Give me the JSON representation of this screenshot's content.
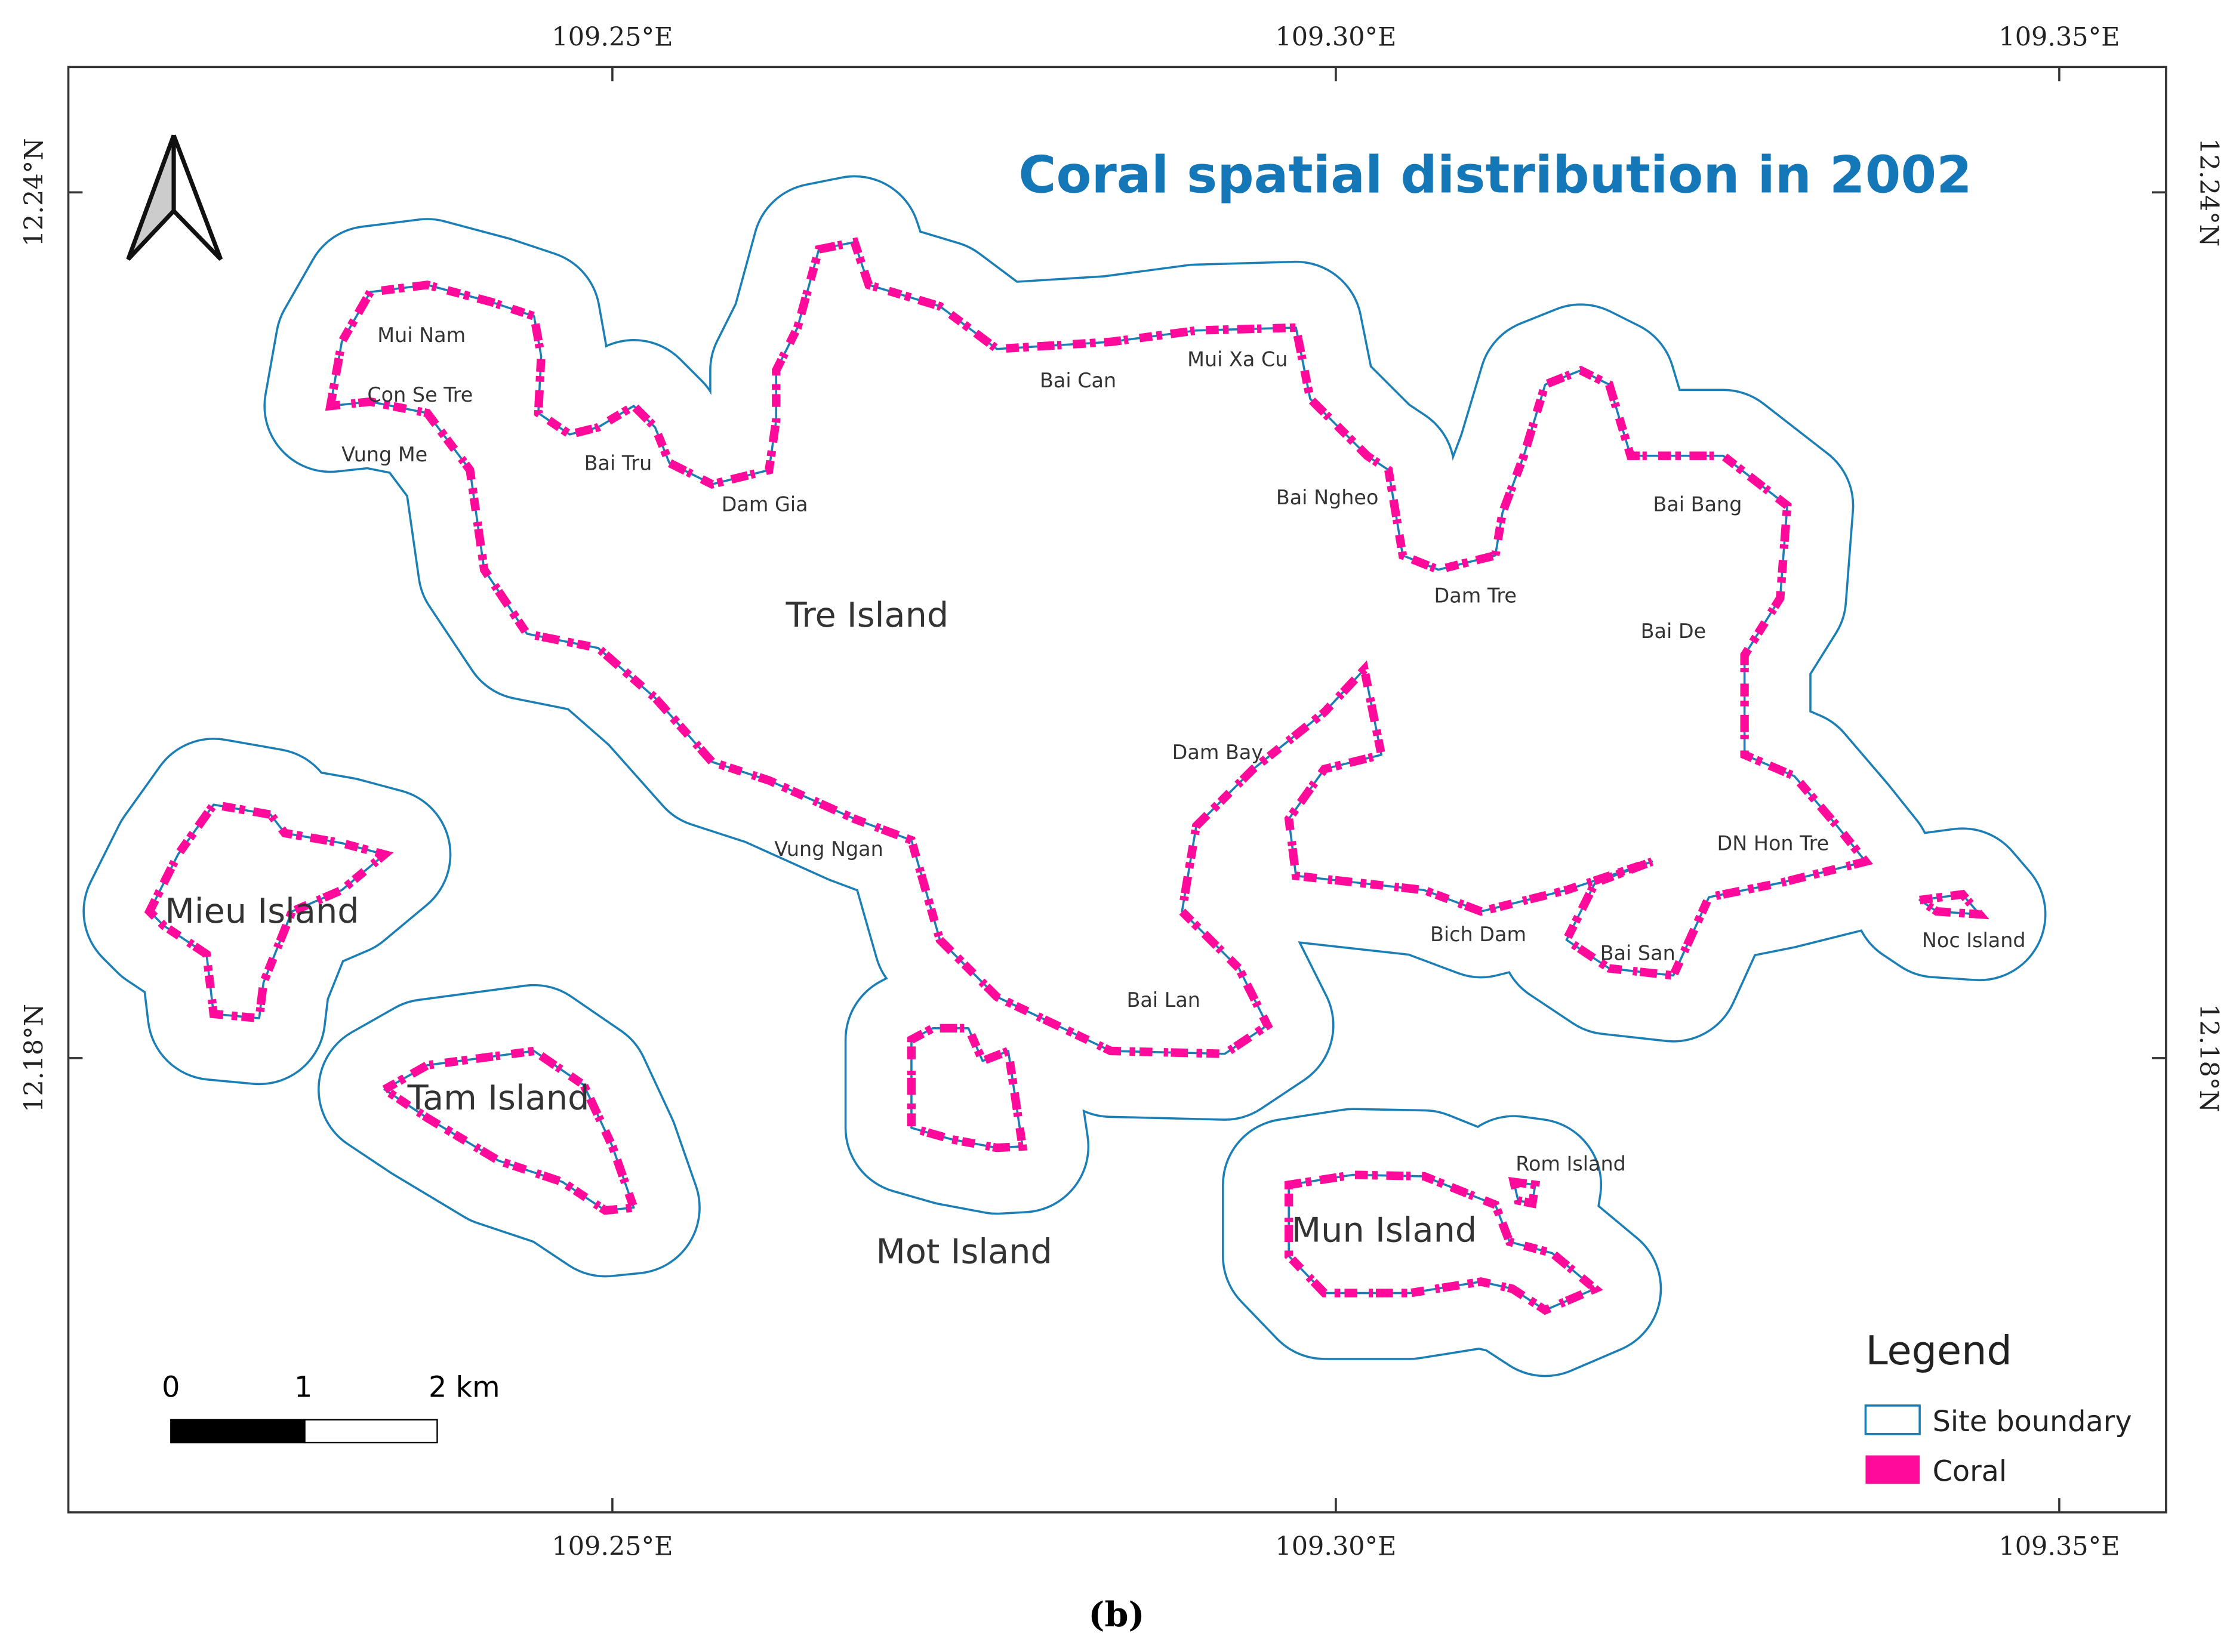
{
  "header": {
    "title": "Coral spatial distribution in 2002"
  },
  "grid": {
    "longitudes": [
      {
        "value": 109.25,
        "label": "109.25°E"
      },
      {
        "value": 109.3,
        "label": "109.30°E"
      },
      {
        "value": 109.35,
        "label": "109.35°E"
      }
    ],
    "latitudes": [
      {
        "value": 12.24,
        "label": "12.24°N"
      },
      {
        "value": 12.18,
        "label": "12.18°N"
      }
    ]
  },
  "places": [
    "Mui Nam",
    "Con Se Tre",
    "Vung Me",
    "Bai Tru",
    "Dam Gia",
    "Bai Can",
    "Mui Xa Cu",
    "Bai Ngheo",
    "Bai Bang",
    "Dam Tre",
    "Bai De",
    "Tre Island",
    "Dam Bay",
    "Vung Ngan",
    "DN Hon Tre",
    "Bich Dam",
    "Bai San",
    "Noc Island",
    "Bai Lan",
    "Mieu Island",
    "Tam Island",
    "Mot Island",
    "Mun Island",
    "Rom Island"
  ],
  "scale_bar": {
    "labels": [
      "0",
      "1",
      "2 km"
    ]
  },
  "legend": {
    "title": "Legend",
    "items": [
      "Site boundary",
      "Coral"
    ]
  },
  "caption": "(b)"
}
